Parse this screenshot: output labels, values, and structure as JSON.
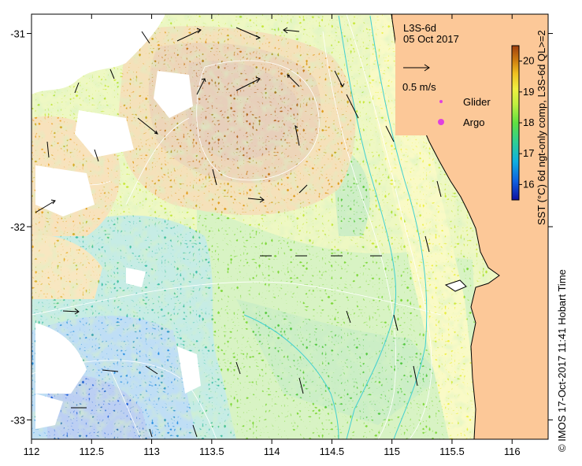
{
  "map": {
    "product": "L3S-6d",
    "date": "05 Oct 2017",
    "x_ticks": [
      "112",
      "112.5",
      "113",
      "113.5",
      "114",
      "114.5",
      "115",
      "115.5",
      "116"
    ],
    "y_ticks": [
      "-31",
      "-32",
      "-33"
    ],
    "lon_range": [
      112.0,
      116.3
    ],
    "lat_range": [
      -30.9,
      -33.1
    ]
  },
  "legend": {
    "scale_label": "0.5 m/s",
    "glider_label": "Glider",
    "argo_label": "Argo",
    "glider_color": "#e040e0",
    "argo_color": "#e040e0"
  },
  "colorbar": {
    "title": "SST (°C) 6d ngt-only comp, L3S-6d QL>=2",
    "ticks": [
      "20",
      "19",
      "18",
      "17",
      "16"
    ],
    "range": [
      15.5,
      20.5
    ]
  },
  "credit": "© IMOS 17-Oct-2017 11:41 Hobart Time"
}
